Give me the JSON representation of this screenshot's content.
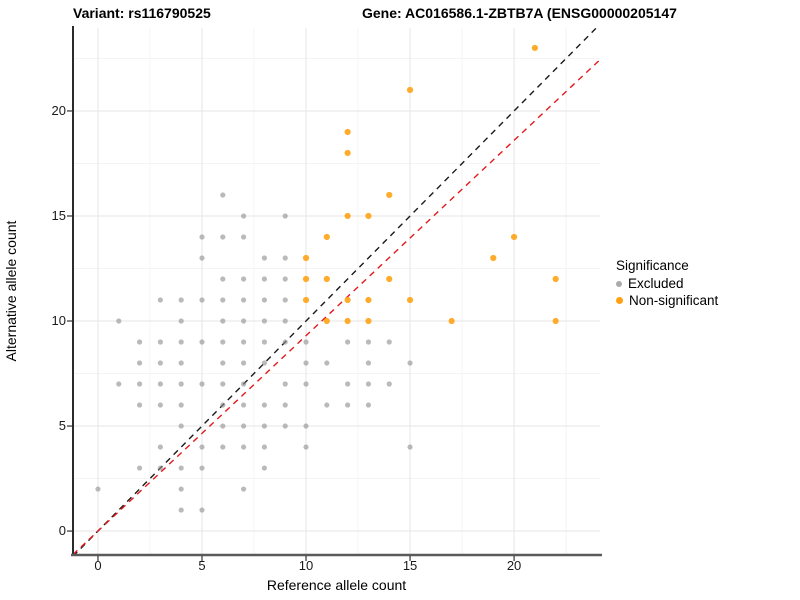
{
  "titles": {
    "variant": "Variant: rs116790525",
    "gene": "Gene: AC016586.1-ZBTB7A (ENSG00000205147"
  },
  "chart_data": {
    "type": "scatter",
    "xlabel": "Reference allele count",
    "ylabel": "Alternative allele count",
    "xlim": [
      -1.2,
      24.13
    ],
    "ylim": [
      -1.14,
      23.95
    ],
    "x_ticks": [
      0,
      5,
      10,
      15,
      20
    ],
    "y_ticks": [
      0,
      5,
      10,
      15,
      20
    ],
    "minor_gridlines": [
      2.5,
      7.5,
      12.5,
      17.5,
      22.5
    ],
    "grid": "major and minor, light gray, white background",
    "legend": {
      "title": "Significance",
      "position": "right",
      "entries": [
        {
          "label": "Excluded",
          "color": "#ababab"
        },
        {
          "label": "Non-significant",
          "color": "#ffa010"
        }
      ]
    },
    "reference_lines": [
      {
        "name": "identity",
        "slope": 1.0,
        "intercept": 0,
        "style": "dashed",
        "color": "#1a1a1a"
      },
      {
        "name": "expected-ratio",
        "slope": 0.93,
        "intercept": 0,
        "style": "dashed",
        "color": "#e31a1c"
      }
    ],
    "series": [
      {
        "name": "Excluded",
        "color": "#8f8f8f",
        "opacity": 0.62,
        "radius": 2.6,
        "points": [
          [
            6,
            16
          ],
          [
            7,
            15
          ],
          [
            9,
            15
          ],
          [
            5,
            14
          ],
          [
            6,
            14
          ],
          [
            7,
            14
          ],
          [
            5,
            13
          ],
          [
            8,
            13
          ],
          [
            9,
            13
          ],
          [
            6,
            12
          ],
          [
            7,
            12
          ],
          [
            8,
            12
          ],
          [
            9,
            12
          ],
          [
            3,
            11
          ],
          [
            4,
            11
          ],
          [
            5,
            11
          ],
          [
            6,
            11
          ],
          [
            7,
            11
          ],
          [
            8,
            11
          ],
          [
            9,
            11
          ],
          [
            1,
            10
          ],
          [
            4,
            10
          ],
          [
            6,
            10
          ],
          [
            7,
            10
          ],
          [
            8,
            10
          ],
          [
            9,
            10
          ],
          [
            2,
            9
          ],
          [
            3,
            9
          ],
          [
            4,
            9
          ],
          [
            5,
            9
          ],
          [
            6,
            9
          ],
          [
            7,
            9
          ],
          [
            8,
            9
          ],
          [
            9,
            9
          ],
          [
            10,
            9
          ],
          [
            12,
            9
          ],
          [
            13,
            9
          ],
          [
            14,
            9
          ],
          [
            2,
            8
          ],
          [
            3,
            8
          ],
          [
            4,
            8
          ],
          [
            6,
            8
          ],
          [
            7,
            8
          ],
          [
            8,
            8
          ],
          [
            10,
            8
          ],
          [
            11,
            8
          ],
          [
            13,
            8
          ],
          [
            15,
            8
          ],
          [
            1,
            7
          ],
          [
            2,
            7
          ],
          [
            3,
            7
          ],
          [
            4,
            7
          ],
          [
            5,
            7
          ],
          [
            6,
            7
          ],
          [
            7,
            7
          ],
          [
            9,
            7
          ],
          [
            10,
            7
          ],
          [
            12,
            7
          ],
          [
            13,
            7
          ],
          [
            14,
            7
          ],
          [
            2,
            6
          ],
          [
            3,
            6
          ],
          [
            4,
            6
          ],
          [
            6,
            6
          ],
          [
            7,
            6
          ],
          [
            8,
            6
          ],
          [
            9,
            6
          ],
          [
            11,
            6
          ],
          [
            12,
            6
          ],
          [
            13,
            6
          ],
          [
            4,
            5
          ],
          [
            6,
            5
          ],
          [
            7,
            5
          ],
          [
            8,
            5
          ],
          [
            9,
            5
          ],
          [
            10,
            5
          ],
          [
            3,
            4
          ],
          [
            5,
            4
          ],
          [
            6,
            4
          ],
          [
            7,
            4
          ],
          [
            8,
            4
          ],
          [
            10,
            4
          ],
          [
            15,
            4
          ],
          [
            2,
            3
          ],
          [
            3,
            3
          ],
          [
            4,
            3
          ],
          [
            5,
            3
          ],
          [
            8,
            3
          ],
          [
            0,
            2
          ],
          [
            4,
            2
          ],
          [
            7,
            2
          ],
          [
            4,
            1
          ],
          [
            5,
            1
          ]
        ]
      },
      {
        "name": "Non-significant",
        "color": "#ffa010",
        "opacity": 0.88,
        "radius": 3.1,
        "points": [
          [
            21,
            23
          ],
          [
            15,
            21
          ],
          [
            12,
            19
          ],
          [
            12,
            18
          ],
          [
            14,
            16
          ],
          [
            12,
            15
          ],
          [
            13,
            15
          ],
          [
            11,
            14
          ],
          [
            20,
            14
          ],
          [
            10,
            13
          ],
          [
            19,
            13
          ],
          [
            10,
            12
          ],
          [
            11,
            12
          ],
          [
            14,
            12
          ],
          [
            22,
            12
          ],
          [
            10,
            11
          ],
          [
            12,
            11
          ],
          [
            13,
            11
          ],
          [
            15,
            11
          ],
          [
            11,
            10
          ],
          [
            12,
            10
          ],
          [
            13,
            10
          ],
          [
            17,
            10
          ],
          [
            22,
            10
          ]
        ]
      }
    ]
  },
  "colors": {
    "major_grid": "#e6e6e6",
    "minor_grid": "#f4f4f4",
    "x_axis_line": "#5a5a5a",
    "y_axis_line": "#2b2b2b",
    "tick_mark": "#333333"
  }
}
